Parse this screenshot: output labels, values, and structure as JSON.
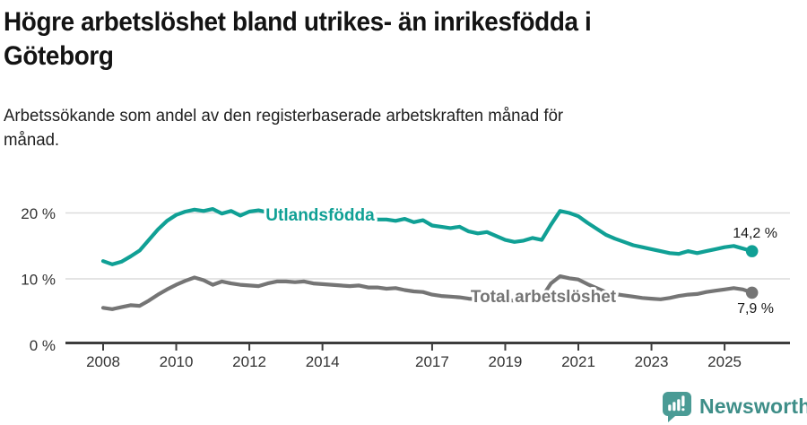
{
  "title": {
    "line1": "Högre arbetslöshet bland utrikes- än inrikesfödda i",
    "line2": "Göteborg"
  },
  "subtitle": {
    "line1": "Arbetssökande som andel av den registerbaserade arbetskraften månad för",
    "line2": "månad."
  },
  "branding": {
    "name": "Newsworthy",
    "icon": "bar-chart-speech-bubble-icon",
    "icon_color": "#4A9B95",
    "text_color": "#3E8E88"
  },
  "chart_data": {
    "type": "line",
    "title": "Högre arbetslöshet bland utrikes- än inrikesfödda i Göteborg",
    "subtitle": "Arbetssökande som andel av den registerbaserade arbetskraften månad för månad.",
    "x_start_year": 2008.0,
    "x_step_years": 0.25,
    "x_ticks": [
      {
        "year": 2008,
        "label": "2008"
      },
      {
        "year": 2010,
        "label": "2010"
      },
      {
        "year": 2012,
        "label": "2012"
      },
      {
        "year": 2014,
        "label": "2014"
      },
      {
        "year": 2017,
        "label": "2017"
      },
      {
        "year": 2019,
        "label": "2019"
      },
      {
        "year": 2021,
        "label": "2021"
      },
      {
        "year": 2023,
        "label": "2023"
      },
      {
        "year": 2025,
        "label": "2025"
      }
    ],
    "y_ticks": [
      {
        "value": 0,
        "label": "0 %"
      },
      {
        "value": 10,
        "label": "10 %"
      },
      {
        "value": 20,
        "label": "20 %"
      }
    ],
    "ylim": [
      0,
      22
    ],
    "grid": "horizontal",
    "legend_position": "inline-labels",
    "series": [
      {
        "name": "Utlandsfödda",
        "color": "#10A095",
        "end_label": "14,2 %",
        "end_value": 14.2,
        "values": [
          12.7,
          12.2,
          12.6,
          13.4,
          14.3,
          15.9,
          17.5,
          18.8,
          19.7,
          20.2,
          20.5,
          20.3,
          20.6,
          19.9,
          20.3,
          19.6,
          20.2,
          20.4,
          20.1,
          19.9,
          20.1,
          19.8,
          19.6,
          19.7,
          19.4,
          19.5,
          19.2,
          19.3,
          19.1,
          19.2,
          19.0,
          19.0,
          18.8,
          19.1,
          18.6,
          18.9,
          18.1,
          17.9,
          17.7,
          17.9,
          17.2,
          16.9,
          17.1,
          16.5,
          15.9,
          15.6,
          15.8,
          16.2,
          15.9,
          18.2,
          20.3,
          20.0,
          19.5,
          18.5,
          17.6,
          16.7,
          16.1,
          15.6,
          15.1,
          14.8,
          14.5,
          14.2,
          13.9,
          13.8,
          14.2,
          13.9,
          14.2,
          14.5,
          14.8,
          15.0,
          14.6,
          14.2
        ]
      },
      {
        "name": "Total arbetslöshet",
        "color": "#757575",
        "end_label": "7,9 %",
        "end_value": 7.9,
        "values": [
          5.6,
          5.4,
          5.7,
          6.0,
          5.9,
          6.7,
          7.6,
          8.4,
          9.1,
          9.7,
          10.2,
          9.8,
          9.1,
          9.6,
          9.3,
          9.1,
          9.0,
          8.9,
          9.3,
          9.6,
          9.6,
          9.5,
          9.6,
          9.3,
          9.2,
          9.1,
          9.0,
          8.9,
          9.0,
          8.7,
          8.7,
          8.5,
          8.6,
          8.3,
          8.1,
          8.0,
          7.6,
          7.4,
          7.3,
          7.2,
          7.0,
          6.9,
          6.9,
          6.8,
          6.8,
          6.7,
          6.8,
          7.0,
          7.2,
          9.3,
          10.4,
          10.1,
          9.9,
          9.2,
          8.6,
          8.0,
          7.7,
          7.5,
          7.3,
          7.1,
          7.0,
          6.9,
          7.1,
          7.4,
          7.6,
          7.7,
          8.0,
          8.2,
          8.4,
          8.6,
          8.4,
          7.9
        ]
      }
    ],
    "colors": {
      "axis": "#3D3D3D",
      "gridline": "#DBDBDB",
      "tick_text": "#333333",
      "value_label_text": "#1A1A1A"
    }
  }
}
